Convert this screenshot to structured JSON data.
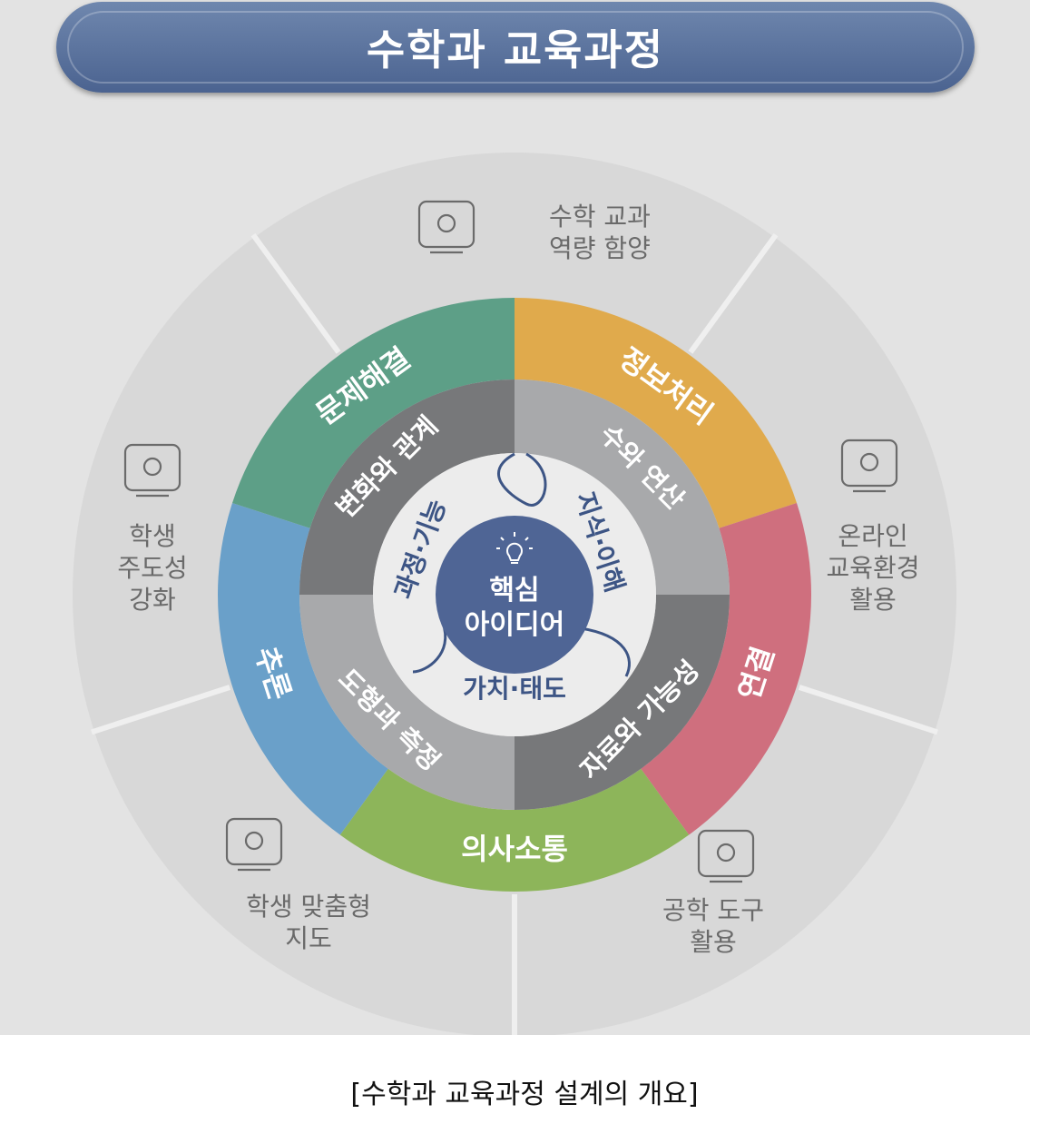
{
  "title": "수학과 교육과정",
  "caption": "[수학과 교육과정 설계의 개요]",
  "outer_ring": [
    {
      "line1": "수학 교과",
      "line2": "역량 함양",
      "line3": "",
      "icon": "head-lightbulb-icon"
    },
    {
      "line1": "온라인",
      "line2": "교육환경",
      "line3": "활용",
      "icon": "online-lecture-icon"
    },
    {
      "line1": "공학 도구",
      "line2": "활용",
      "line3": "",
      "icon": "devices-gear-icon"
    },
    {
      "line1": "학생 맞춤형",
      "line2": "지도",
      "line3": "",
      "icon": "student-search-icon"
    },
    {
      "line1": "학생",
      "line2": "주도성",
      "line3": "강화",
      "icon": "presenter-board-icon"
    }
  ],
  "competencies": [
    {
      "label": "정보처리",
      "color": "#e0aa4c"
    },
    {
      "label": "연결",
      "color": "#cf6f7e"
    },
    {
      "label": "의사소통",
      "color": "#8db55a"
    },
    {
      "label": "추론",
      "color": "#6aa0c9"
    },
    {
      "label": "문제해결",
      "color": "#5d9f87"
    }
  ],
  "areas": [
    {
      "label": "수와 연산",
      "color": "#a8a9ab"
    },
    {
      "label": "자료와 가능성",
      "color": "#77787a"
    },
    {
      "label": "도형과 측정",
      "color": "#a8a9ab"
    },
    {
      "label": "변화와 관계",
      "color": "#77787a"
    }
  ],
  "categories": {
    "knowledge": "지식·이해",
    "process": "과정·기능",
    "values": "가치·태도"
  },
  "core": {
    "line1": "핵심",
    "line2": "아이디어",
    "icon": "lightbulb-icon"
  },
  "colors": {
    "banner": "#5670a0",
    "core": "#4f6595",
    "category_text": "#3d5585",
    "outer_ring": "#d7d7d7"
  }
}
